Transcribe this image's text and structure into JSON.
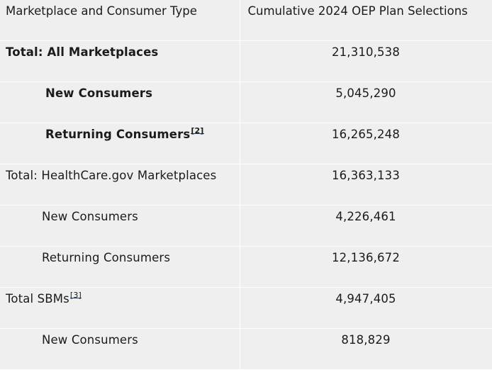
{
  "table": {
    "headers": [
      "Marketplace and Consumer Type",
      "Cumulative 2024 OEP Plan Selections"
    ],
    "rows": [
      {
        "label": "Total: All Marketplaces",
        "footnote": "",
        "value": "21,310,538"
      },
      {
        "label": "New Consumers",
        "footnote": "",
        "value": "5,045,290"
      },
      {
        "label": "Returning Consumers",
        "footnote": "[2]",
        "value": "16,265,248"
      },
      {
        "label": "Total: HealthCare.gov Marketplaces",
        "footnote": "",
        "value": "16,363,133"
      },
      {
        "label": "New Consumers",
        "footnote": "",
        "value": "4,226,461"
      },
      {
        "label": "Returning Consumers",
        "footnote": "",
        "value": "12,136,672"
      },
      {
        "label": "Total SBMs",
        "footnote": "[3]",
        "value": "4,947,405"
      },
      {
        "label": "New Consumers",
        "footnote": "",
        "value": "818,829"
      }
    ]
  }
}
